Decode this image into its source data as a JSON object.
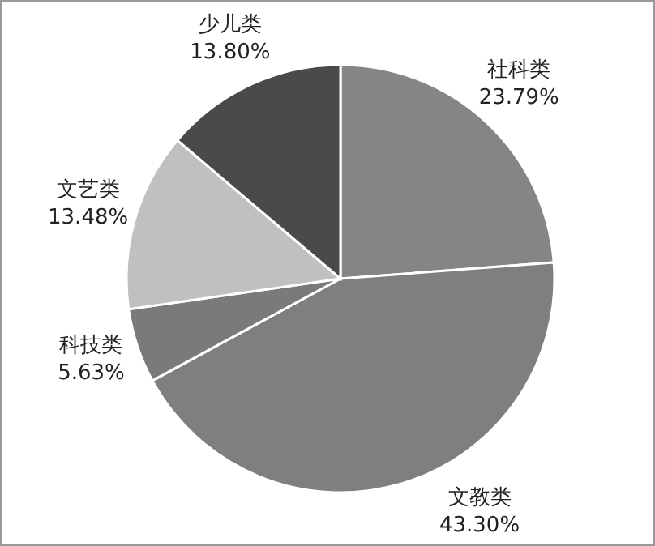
{
  "chart_data": {
    "type": "pie",
    "categories": [
      "社科类",
      "文教类",
      "科技类",
      "文艺类",
      "少儿类"
    ],
    "values": [
      23.79,
      43.3,
      5.63,
      13.48,
      13.8
    ],
    "value_labels": [
      "23.79%",
      "43.30%",
      "5.63%",
      "13.48%",
      "13.80%"
    ],
    "colors": [
      "#858585",
      "#7f7f7f",
      "#7a7a7a",
      "#c0c0c0",
      "#4a4a4a"
    ]
  }
}
